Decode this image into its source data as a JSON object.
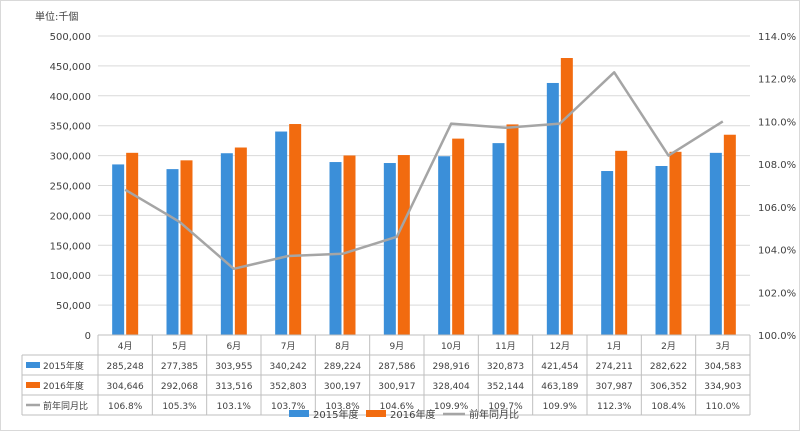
{
  "chart_data": {
    "type": "bar",
    "unit_label": "単位:千個",
    "categories": [
      "4月",
      "5月",
      "6月",
      "7月",
      "8月",
      "9月",
      "10月",
      "11月",
      "12月",
      "1月",
      "2月",
      "3月"
    ],
    "series": [
      {
        "name": "2015年度",
        "type": "bar",
        "color": "#3b8fd9",
        "values": [
          285248,
          277385,
          303955,
          340242,
          289224,
          287586,
          298916,
          320873,
          421454,
          274211,
          282622,
          304583
        ],
        "labels": [
          "285,248",
          "277,385",
          "303,955",
          "340,242",
          "289,224",
          "287,586",
          "298,916",
          "320,873",
          "421,454",
          "274,211",
          "282,622",
          "304,583"
        ]
      },
      {
        "name": "2016年度",
        "type": "bar",
        "color": "#f26b0f",
        "values": [
          304646,
          292068,
          313516,
          352803,
          300197,
          300917,
          328404,
          352144,
          463189,
          307987,
          306352,
          334903
        ],
        "labels": [
          "304,646",
          "292,068",
          "313,516",
          "352,803",
          "300,197",
          "300,917",
          "328,404",
          "352,144",
          "463,189",
          "307,987",
          "306,352",
          "334,903"
        ]
      },
      {
        "name": "前年同月比",
        "type": "line",
        "axis": "right",
        "color": "#a5a5a5",
        "values": [
          106.8,
          105.3,
          103.1,
          103.7,
          103.8,
          104.6,
          109.9,
          109.7,
          109.9,
          112.3,
          108.4,
          110.0
        ],
        "labels": [
          "106.8%",
          "105.3%",
          "103.1%",
          "103.7%",
          "103.8%",
          "104.6%",
          "109.9%",
          "109.7%",
          "109.9%",
          "112.3%",
          "108.4%",
          "110.0%"
        ]
      }
    ],
    "y_left": {
      "min": 0,
      "max": 500000,
      "step": 50000,
      "tick_labels": [
        "0",
        "50,000",
        "100,000",
        "150,000",
        "200,000",
        "250,000",
        "300,000",
        "350,000",
        "400,000",
        "450,000",
        "500,000"
      ]
    },
    "y_right": {
      "min": 100,
      "max": 114,
      "step": 2,
      "tick_labels": [
        "100.0%",
        "102.0%",
        "104.0%",
        "106.0%",
        "108.0%",
        "110.0%",
        "112.0%",
        "114.0%"
      ]
    },
    "grid": true,
    "legend_placement": "bottom"
  }
}
